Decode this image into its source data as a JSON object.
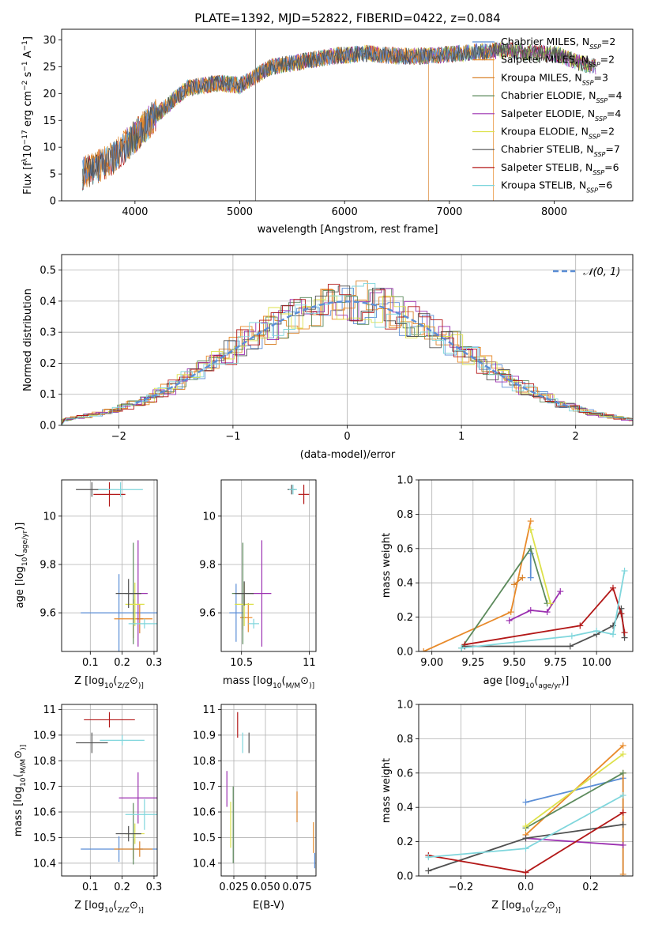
{
  "figure": {
    "title": "PLATE=1392, MJD=52822, FIBERID=0422, z=0.084"
  },
  "models": [
    {
      "key": "chabrier_miles",
      "label": "Chabrier MILES, N",
      "n": "2",
      "color": "#5b8ed6"
    },
    {
      "key": "salpeter_miles",
      "label": "Salpeter MILES, N",
      "n": "2",
      "color": "#e88a2a"
    },
    {
      "key": "kroupa_miles",
      "label": "Kroupa MILES, N",
      "n": "3",
      "color": "#d9822b"
    },
    {
      "key": "chabrier_elodie",
      "label": "Chabrier ELODIE, N",
      "n": "4",
      "color": "#5c8a5c"
    },
    {
      "key": "salpeter_elodie",
      "label": "Salpeter ELODIE, N",
      "n": "4",
      "color": "#9b30b0"
    },
    {
      "key": "kroupa_elodie",
      "label": "Kroupa ELODIE, N",
      "n": "2",
      "color": "#dde14a"
    },
    {
      "key": "chabrier_stelib",
      "label": "Chabrier STELIB, N",
      "n": "7",
      "color": "#505050"
    },
    {
      "key": "salpeter_stelib",
      "label": "Salpeter STELIB, N",
      "n": "6",
      "color": "#b31818"
    },
    {
      "key": "kroupa_stelib",
      "label": "Kroupa STELIB, N",
      "n": "6",
      "color": "#7fd6dc"
    }
  ],
  "chart_data": [
    {
      "id": "spectrum",
      "type": "line",
      "title": "PLATE=1392, MJD=52822, FIBERID=0422, z=0.084",
      "xlabel": "wavelength [Angstrom, rest frame]",
      "ylabel_parts": [
        "Flux [f",
        "λ",
        "10",
        "−17",
        " erg cm",
        "−2",
        " s",
        "−1",
        " A",
        "−1",
        "]"
      ],
      "xlim": [
        3300,
        8750
      ],
      "ylim": [
        0,
        32
      ],
      "xticks": [
        4000,
        5000,
        6000,
        7000,
        8000
      ],
      "yticks": [
        0,
        5,
        10,
        15,
        20,
        25,
        30
      ],
      "grid": false,
      "legend": "upper right",
      "continuum_anchors": {
        "x": [
          3500,
          3800,
          4000,
          4200,
          4500,
          4800,
          5000,
          5300,
          5600,
          5900,
          6200,
          6500,
          6800,
          7100,
          7400,
          7600,
          7800,
          8000,
          8200,
          8400
        ],
        "y": [
          5,
          8,
          12,
          16,
          21,
          22,
          21.5,
          25,
          26,
          27,
          27.5,
          27,
          27,
          27.5,
          28,
          28,
          27.5,
          27.5,
          26,
          25
        ]
      }
    },
    {
      "id": "residuals",
      "type": "line",
      "xlabel": "(data-model)/error",
      "ylabel": "Normed distribution",
      "xlim": [
        -2.5,
        2.5
      ],
      "ylim": [
        0,
        0.55
      ],
      "xticks": [
        -2,
        -1,
        0,
        1,
        2
      ],
      "xtick_labels": [
        "−2",
        "−1",
        "0",
        "1",
        "2"
      ],
      "yticks": [
        0,
        0.1,
        0.2,
        0.3,
        0.4,
        0.5
      ],
      "ytick_labels": [
        "0.0",
        "0.1",
        "0.2",
        "0.3",
        "0.4",
        "0.5"
      ],
      "grid": true,
      "legend": "upper right",
      "reference_label": "𝒩(0, 1)",
      "reference_color": "#5b8ed6"
    },
    {
      "id": "age_vs_Z",
      "type": "scatter",
      "xlabel_parts": [
        "Z [log",
        "10",
        "(",
        "Z/Z",
        "⊙",
        ")]"
      ],
      "ylabel_parts": [
        "age  [log",
        "10",
        "(",
        "age/yr",
        ")]"
      ],
      "xlim": [
        0.01,
        0.31
      ],
      "ylim": [
        9.44,
        10.15
      ],
      "xticks": [
        0.1,
        0.2,
        0.3
      ],
      "yticks": [
        9.6,
        9.8,
        10.0
      ],
      "grid": true,
      "points": [
        {
          "model": "chabrier_miles",
          "x": 0.19,
          "y": 9.6,
          "xerr": 0.12,
          "yerr": 0.16
        },
        {
          "model": "salpeter_miles",
          "x": 0.235,
          "y": 9.575,
          "xerr": 0.06,
          "yerr": 0.08
        },
        {
          "model": "kroupa_miles",
          "x": 0.255,
          "y": 9.575,
          "xerr": 0.01,
          "yerr": 0.06
        },
        {
          "model": "chabrier_elodie",
          "x": 0.235,
          "y": 9.68,
          "xerr": 0.025,
          "yerr": 0.21
        },
        {
          "model": "salpeter_elodie",
          "x": 0.25,
          "y": 9.68,
          "xerr": 0.03,
          "yerr": 0.22
        },
        {
          "model": "kroupa_elodie",
          "x": 0.24,
          "y": 9.635,
          "xerr": 0.03,
          "yerr": 0.09
        },
        {
          "model": "chabrier_stelib",
          "x": 0.105,
          "y": 10.11,
          "xerr": 0.05,
          "yerr": 0.03
        },
        {
          "model": "salpeter_stelib",
          "x": 0.16,
          "y": 10.09,
          "xerr": 0.05,
          "yerr": 0.05
        },
        {
          "model": "kroupa_stelib",
          "x": 0.195,
          "y": 10.11,
          "xerr": 0.07,
          "yerr": 0.03
        },
        {
          "model": "chabrier_stelib",
          "x": 0.22,
          "y": 9.68,
          "xerr": 0.04,
          "yerr": 0.06
        },
        {
          "model": "kroupa_stelib",
          "x": 0.27,
          "y": 9.555,
          "xerr": 0.05,
          "yerr": 0.02
        }
      ]
    },
    {
      "id": "age_vs_mass",
      "type": "scatter",
      "xlabel_parts": [
        "mass [log",
        "10",
        "(",
        "M/M",
        "⊙",
        ")]"
      ],
      "xlim": [
        10.35,
        11.05
      ],
      "ylim": [
        9.44,
        10.15
      ],
      "xticks": [
        10.5,
        11.0
      ],
      "yticks": [
        9.6,
        9.8,
        10.0
      ],
      "grid": true,
      "points": [
        {
          "model": "chabrier_miles",
          "x": 10.46,
          "y": 9.6,
          "xerr": 0.05,
          "yerr": 0.12
        },
        {
          "model": "salpeter_miles",
          "x": 10.55,
          "y": 9.58,
          "xerr": 0.03,
          "yerr": 0.06
        },
        {
          "model": "kroupa_miles",
          "x": 10.51,
          "y": 9.58,
          "xerr": 0.02,
          "yerr": 0.05
        },
        {
          "model": "chabrier_elodie",
          "x": 10.51,
          "y": 9.68,
          "xerr": 0.08,
          "yerr": 0.21
        },
        {
          "model": "salpeter_elodie",
          "x": 10.65,
          "y": 9.68,
          "xerr": 0.07,
          "yerr": 0.22
        },
        {
          "model": "kroupa_elodie",
          "x": 10.52,
          "y": 9.635,
          "xerr": 0.07,
          "yerr": 0.09
        },
        {
          "model": "chabrier_stelib",
          "x": 10.87,
          "y": 10.11,
          "xerr": 0.03,
          "yerr": 0.02
        },
        {
          "model": "salpeter_stelib",
          "x": 10.96,
          "y": 10.09,
          "xerr": 0.04,
          "yerr": 0.04
        },
        {
          "model": "kroupa_stelib",
          "x": 10.88,
          "y": 10.11,
          "xerr": 0.03,
          "yerr": 0.02
        },
        {
          "model": "chabrier_stelib",
          "x": 10.52,
          "y": 9.68,
          "xerr": 0.07,
          "yerr": 0.05
        },
        {
          "model": "kroupa_stelib",
          "x": 10.59,
          "y": 9.555,
          "xerr": 0.04,
          "yerr": 0.02
        }
      ]
    },
    {
      "id": "weight_vs_age",
      "type": "line",
      "xlabel_parts": [
        "age  [log",
        "10",
        "(",
        "age/yr",
        ")]"
      ],
      "ylabel": "mass weight",
      "xlim": [
        8.92,
        10.22
      ],
      "ylim": [
        0,
        1.0
      ],
      "xticks": [
        9.0,
        9.25,
        9.5,
        9.75,
        10.0
      ],
      "xtick_labels": [
        "9.00",
        "9.25",
        "9.50",
        "9.75",
        "10.00"
      ],
      "yticks": [
        0,
        0.2,
        0.4,
        0.6,
        0.8,
        1.0
      ],
      "ytick_labels": [
        "0.0",
        "0.2",
        "0.4",
        "0.6",
        "0.8",
        "1.0"
      ],
      "grid": true,
      "series": [
        {
          "model": "chabrier_miles",
          "x": [
            9.6,
            9.6
          ],
          "y": [
            0.57,
            0.43
          ]
        },
        {
          "model": "salpeter_miles",
          "x": [
            8.95,
            9.48,
            9.6
          ],
          "y": [
            0.0,
            0.23,
            0.76
          ]
        },
        {
          "model": "kroupa_miles",
          "x": [
            9.5,
            9.55
          ],
          "y": [
            0.39,
            0.43
          ]
        },
        {
          "model": "chabrier_elodie",
          "x": [
            9.18,
            9.6,
            9.7
          ],
          "y": [
            0.02,
            0.6,
            0.28
          ]
        },
        {
          "model": "salpeter_elodie",
          "x": [
            9.47,
            9.6,
            9.7,
            9.78
          ],
          "y": [
            0.18,
            0.24,
            0.23,
            0.35
          ]
        },
        {
          "model": "kroupa_elodie",
          "x": [
            9.6,
            9.72
          ],
          "y": [
            0.71,
            0.28
          ]
        },
        {
          "model": "chabrier_stelib",
          "x": [
            9.2,
            9.84,
            10.0,
            10.1,
            10.15,
            10.17
          ],
          "y": [
            0.03,
            0.03,
            0.1,
            0.15,
            0.25,
            0.08
          ]
        },
        {
          "model": "salpeter_stelib",
          "x": [
            9.2,
            9.9,
            10.1,
            10.15,
            10.17
          ],
          "y": [
            0.04,
            0.15,
            0.37,
            0.22,
            0.11
          ]
        },
        {
          "model": "kroupa_stelib",
          "x": [
            9.18,
            9.85,
            10.0,
            10.1,
            10.17
          ],
          "y": [
            0.02,
            0.09,
            0.12,
            0.1,
            0.47
          ]
        }
      ]
    },
    {
      "id": "mass_vs_Z",
      "type": "scatter",
      "xlabel_parts": [
        "Z [log",
        "10",
        "(",
        "Z/Z",
        "⊙",
        ")]"
      ],
      "ylabel_parts": [
        "mass [log",
        "10",
        "(",
        "M/M",
        "⊙",
        ")]"
      ],
      "xlim": [
        0.01,
        0.31
      ],
      "ylim": [
        10.35,
        11.02
      ],
      "xticks": [
        0.1,
        0.2,
        0.3
      ],
      "yticks": [
        10.4,
        10.5,
        10.6,
        10.7,
        10.8,
        10.9,
        11.0
      ],
      "grid": true,
      "points": [
        {
          "model": "chabrier_miles",
          "x": 0.19,
          "y": 10.455,
          "xerr": 0.12,
          "yerr": 0.05
        },
        {
          "model": "salpeter_miles",
          "x": 0.235,
          "y": 10.455,
          "xerr": 0.06,
          "yerr": 0.04
        },
        {
          "model": "kroupa_miles",
          "x": 0.255,
          "y": 10.455,
          "xerr": 0.01,
          "yerr": 0.03
        },
        {
          "model": "chabrier_elodie",
          "x": 0.235,
          "y": 10.515,
          "xerr": 0.025,
          "yerr": 0.12
        },
        {
          "model": "salpeter_elodie",
          "x": 0.25,
          "y": 10.655,
          "xerr": 0.06,
          "yerr": 0.1
        },
        {
          "model": "kroupa_elodie",
          "x": 0.24,
          "y": 10.515,
          "xerr": 0.03,
          "yerr": 0.04
        },
        {
          "model": "chabrier_stelib",
          "x": 0.105,
          "y": 10.87,
          "xerr": 0.05,
          "yerr": 0.04
        },
        {
          "model": "salpeter_stelib",
          "x": 0.16,
          "y": 10.96,
          "xerr": 0.08,
          "yerr": 0.03
        },
        {
          "model": "kroupa_stelib",
          "x": 0.2,
          "y": 10.88,
          "xerr": 0.07,
          "yerr": 0.02
        },
        {
          "model": "chabrier_stelib",
          "x": 0.22,
          "y": 10.515,
          "xerr": 0.04,
          "yerr": 0.03
        },
        {
          "model": "kroupa_stelib",
          "x": 0.27,
          "y": 10.59,
          "xerr": 0.06,
          "yerr": 0.06
        }
      ]
    },
    {
      "id": "mass_vs_EBV",
      "type": "scatter",
      "xlabel": "E(B-V)",
      "xlim": [
        0.015,
        0.09
      ],
      "ylim": [
        10.35,
        11.02
      ],
      "xticks": [
        0.025,
        0.05,
        0.075
      ],
      "xtick_labels": [
        "0.025",
        "0.050",
        "0.075"
      ],
      "yticks": [
        10.4,
        10.5,
        10.6,
        10.7,
        10.8,
        10.9,
        11.0
      ],
      "grid": true,
      "points": [
        {
          "model": "chabrier_miles",
          "x": 0.089,
          "y": 10.41,
          "xerr": 0,
          "yerr": 0.03
        },
        {
          "model": "salpeter_miles",
          "x": 0.088,
          "y": 10.5,
          "xerr": 0,
          "yerr": 0.06
        },
        {
          "model": "kroupa_miles",
          "x": 0.075,
          "y": 10.62,
          "xerr": 0,
          "yerr": 0.06
        },
        {
          "model": "chabrier_elodie",
          "x": 0.0245,
          "y": 10.55,
          "xerr": 0,
          "yerr": 0.15
        },
        {
          "model": "salpeter_elodie",
          "x": 0.0195,
          "y": 10.69,
          "xerr": 0,
          "yerr": 0.07
        },
        {
          "model": "kroupa_elodie",
          "x": 0.0225,
          "y": 10.55,
          "xerr": 0,
          "yerr": 0.09
        },
        {
          "model": "chabrier_stelib",
          "x": 0.037,
          "y": 10.87,
          "xerr": 0,
          "yerr": 0.04
        },
        {
          "model": "salpeter_stelib",
          "x": 0.028,
          "y": 10.94,
          "xerr": 0,
          "yerr": 0.05
        },
        {
          "model": "kroupa_stelib",
          "x": 0.032,
          "y": 10.87,
          "xerr": 0,
          "yerr": 0.04
        }
      ]
    },
    {
      "id": "weight_vs_Z",
      "type": "line",
      "xlabel_parts": [
        "Z [log",
        "10",
        "(",
        "Z/Z",
        "⊙",
        ")]"
      ],
      "ylabel": "mass weight",
      "xlim": [
        -0.33,
        0.33
      ],
      "ylim": [
        0,
        1.0
      ],
      "xticks": [
        -0.2,
        0.0,
        0.2
      ],
      "xtick_labels": [
        "−0.2",
        "0.0",
        "0.2"
      ],
      "yticks": [
        0,
        0.2,
        0.4,
        0.6,
        0.8,
        1.0
      ],
      "ytick_labels": [
        "0.0",
        "0.2",
        "0.4",
        "0.6",
        "0.8",
        "1.0"
      ],
      "grid": true,
      "series": [
        {
          "model": "chabrier_miles",
          "x": [
            0.0,
            0.3
          ],
          "y": [
            0.43,
            0.57
          ]
        },
        {
          "model": "salpeter_miles",
          "x": [
            0.0,
            0.3
          ],
          "y": [
            0.24,
            0.76
          ]
        },
        {
          "model": "kroupa_miles",
          "x": [
            0.3,
            0.3
          ],
          "y": [
            0.6,
            0.01
          ]
        },
        {
          "model": "chabrier_elodie",
          "x": [
            0.0,
            0.3
          ],
          "y": [
            0.28,
            0.6
          ]
        },
        {
          "model": "salpeter_elodie",
          "x": [
            0.0,
            0.3
          ],
          "y": [
            0.22,
            0.18
          ]
        },
        {
          "model": "kroupa_elodie",
          "x": [
            0.0,
            0.3
          ],
          "y": [
            0.29,
            0.71
          ]
        },
        {
          "model": "chabrier_stelib",
          "x": [
            -0.3,
            0.0,
            0.3
          ],
          "y": [
            0.03,
            0.22,
            0.3
          ]
        },
        {
          "model": "salpeter_stelib",
          "x": [
            -0.3,
            0.0,
            0.3
          ],
          "y": [
            0.12,
            0.02,
            0.37
          ]
        },
        {
          "model": "kroupa_stelib",
          "x": [
            -0.3,
            0.0,
            0.3
          ],
          "y": [
            0.11,
            0.16,
            0.47
          ]
        }
      ]
    }
  ]
}
